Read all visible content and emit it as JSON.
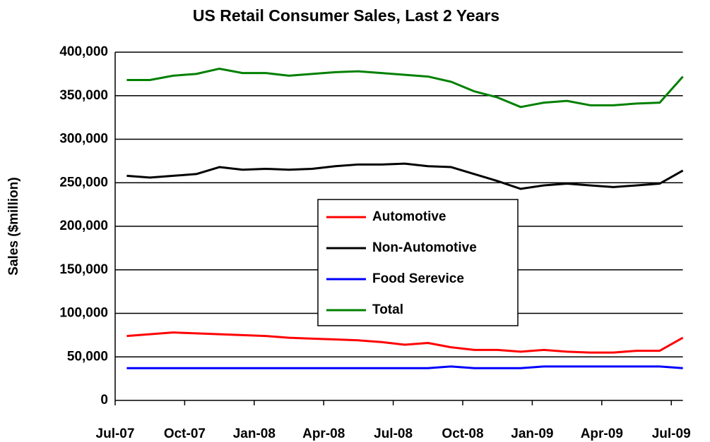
{
  "chart_data": {
    "type": "line",
    "title": "US Retail Consumer Sales,  Last 2 Years",
    "y_label": "Sales ($million)",
    "categories": [
      "Jul-07",
      null,
      null,
      "Oct-07",
      null,
      null,
      "Jan-08",
      null,
      null,
      "Apr-08",
      null,
      null,
      "Jul-08",
      null,
      null,
      "Oct-08",
      null,
      null,
      "Jan-09",
      null,
      null,
      "Apr-09",
      null,
      null,
      "Jul-09"
    ],
    "series": [
      {
        "name": "Automotive",
        "color": "#ff0000",
        "values": [
          74000,
          76000,
          78000,
          77000,
          76000,
          75000,
          74000,
          72000,
          71000,
          70000,
          69000,
          67000,
          64000,
          66000,
          61000,
          58000,
          58000,
          56000,
          58000,
          56000,
          55000,
          55000,
          57000,
          57000,
          72000
        ]
      },
      {
        "name": "Non-Automotive",
        "color": "#000000",
        "values": [
          258000,
          256000,
          258000,
          260000,
          268000,
          265000,
          266000,
          265000,
          266000,
          269000,
          271000,
          271000,
          272000,
          269000,
          268000,
          260000,
          252000,
          243000,
          247000,
          249000,
          247000,
          245000,
          247000,
          249000,
          264000
        ]
      },
      {
        "name": "Food Serevice",
        "color": "#0000ff",
        "values": [
          37000,
          37000,
          37000,
          37000,
          37000,
          37000,
          37000,
          37000,
          37000,
          37000,
          37000,
          37000,
          37000,
          37000,
          39000,
          37000,
          37000,
          37000,
          39000,
          39000,
          39000,
          39000,
          39000,
          39000,
          37000
        ]
      },
      {
        "name": "Total",
        "color": "#008000",
        "values": [
          368000,
          368000,
          373000,
          375000,
          381000,
          376000,
          376000,
          373000,
          375000,
          377000,
          378000,
          376000,
          374000,
          372000,
          366000,
          355000,
          348000,
          337000,
          342000,
          344000,
          339000,
          339000,
          341000,
          342000,
          372000
        ]
      }
    ],
    "ylim": [
      0,
      400000
    ],
    "yticks": [
      0,
      {
        "value": 50000,
        "label": "50,000"
      },
      {
        "value": 100000,
        "label": "100,000"
      },
      {
        "value": 150000,
        "label": "150,000"
      },
      {
        "value": 200000,
        "label": "200,000"
      },
      {
        "value": 250000,
        "label": "250,000"
      },
      {
        "value": 300000,
        "label": "300,000"
      },
      {
        "value": 350000,
        "label": "350,000"
      },
      {
        "value": 400000,
        "label": "400,000"
      }
    ],
    "grid": true,
    "legend": "center"
  }
}
